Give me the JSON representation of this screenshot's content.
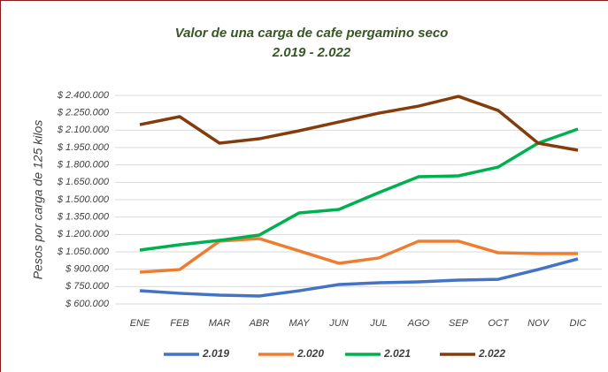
{
  "chart_data": {
    "type": "line",
    "title": "Valor de una carga de cafe pergamino seco",
    "subtitle": "2.019 - 2.022",
    "y_label": "Pesos por carga de 125 kilos",
    "categories": [
      "ENE",
      "FEB",
      "MAR",
      "ABR",
      "MAY",
      "JUN",
      "JUL",
      "AGO",
      "SEP",
      "OCT",
      "NOV",
      "DIC"
    ],
    "series": [
      {
        "name": "2.019",
        "color": "#4472c4",
        "values": [
          714000,
          692000,
          676000,
          669000,
          714000,
          768000,
          783000,
          791000,
          806000,
          813000,
          897000,
          989000
        ]
      },
      {
        "name": "2.020",
        "color": "#ed7d31",
        "values": [
          875000,
          897000,
          1142000,
          1164000,
          1058000,
          951000,
          997000,
          1142000,
          1142000,
          1042000,
          1035000,
          1035000
        ]
      },
      {
        "name": "2.021",
        "color": "#00b050",
        "values": [
          1065000,
          1111000,
          1149000,
          1195000,
          1386000,
          1416000,
          1561000,
          1698000,
          1706000,
          1782000,
          1988000,
          2110000
        ]
      },
      {
        "name": "2.022",
        "color": "#843c0c",
        "values": [
          2148000,
          2217000,
          1988000,
          2026000,
          2095000,
          2171000,
          2247000,
          2308000,
          2392000,
          2270000,
          1988000,
          1927000
        ]
      }
    ],
    "ylim": [
      600000,
      2400000
    ],
    "yticks": [
      {
        "value": 600000,
        "label": "$ 600.000"
      },
      {
        "value": 750000,
        "label": "$ 750.000"
      },
      {
        "value": 900000,
        "label": "$ 900.000"
      },
      {
        "value": 1050000,
        "label": "$ 1.050.000"
      },
      {
        "value": 1200000,
        "label": "$ 1.200.000"
      },
      {
        "value": 1350000,
        "label": "$ 1.350.000"
      },
      {
        "value": 1500000,
        "label": "$ 1.500.000"
      },
      {
        "value": 1650000,
        "label": "$ 1.650.000"
      },
      {
        "value": 1800000,
        "label": "$ 1.800.000"
      },
      {
        "value": 1950000,
        "label": "$ 1.950.000"
      },
      {
        "value": 2100000,
        "label": "$ 2.100.000"
      },
      {
        "value": 2250000,
        "label": "$ 2.250.000"
      },
      {
        "value": 2400000,
        "label": "$ 2.400.000"
      }
    ],
    "grid": true,
    "legend": "bottom"
  }
}
